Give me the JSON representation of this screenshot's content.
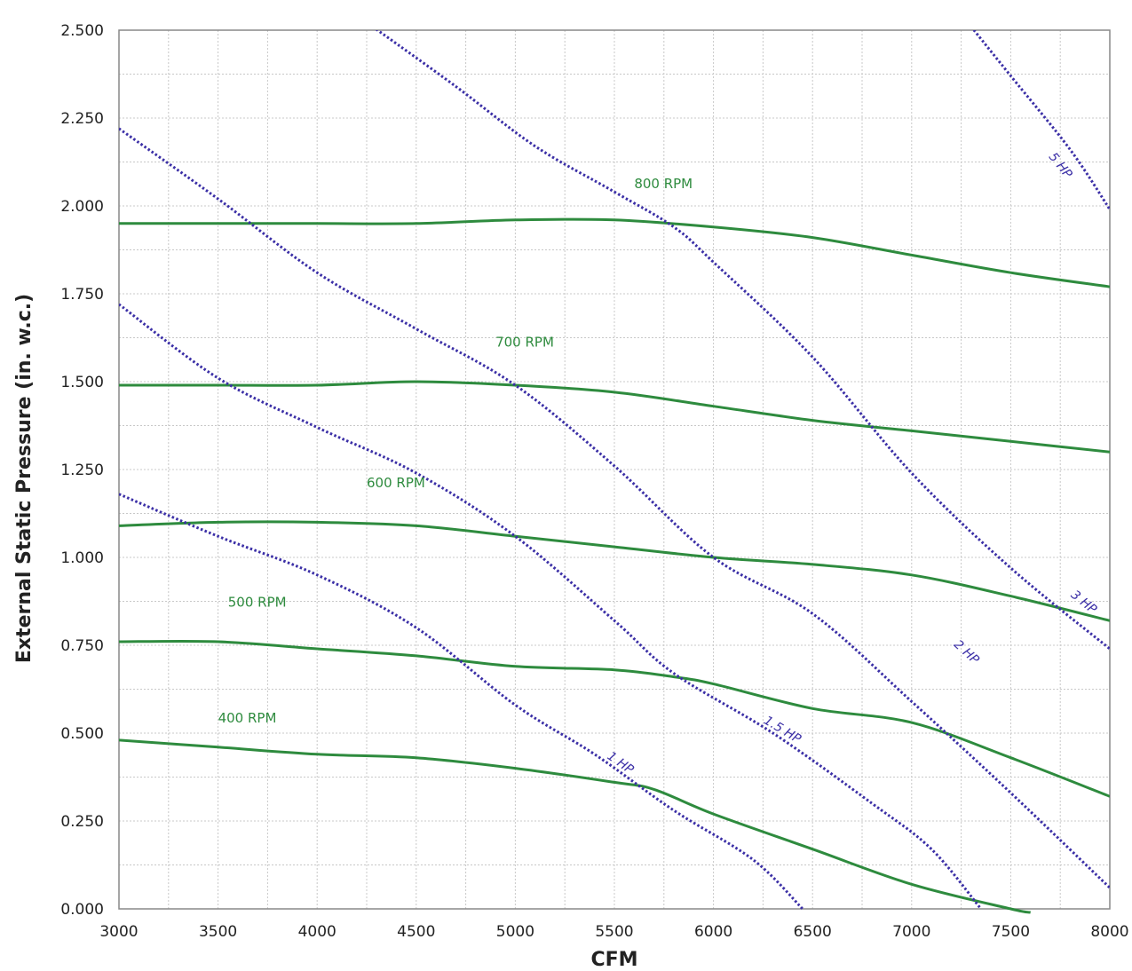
{
  "chart_data": {
    "type": "line",
    "xlabel": "CFM",
    "ylabel": "External Static Pressure (in. w.c.)",
    "xlim": [
      3000,
      8000
    ],
    "ylim": [
      0,
      2.5
    ],
    "x_ticks": [
      "3000",
      "3500",
      "4000",
      "4500",
      "5000",
      "5500",
      "6000",
      "6500",
      "7000",
      "7500",
      "8000"
    ],
    "y_ticks": [
      "0.000",
      "0.250",
      "0.500",
      "0.750",
      "1.000",
      "1.250",
      "1.500",
      "1.750",
      "2.000",
      "2.250",
      "2.500"
    ],
    "grid": true,
    "colors": {
      "rpm": "#2e8b3e",
      "hp": "#3b2fa6",
      "grid": "#c8c8c8",
      "frame": "#888888"
    },
    "series": [
      {
        "name": "400 RPM",
        "kind": "rpm",
        "label": "400 RPM",
        "label_at": [
          3500,
          0.53
        ],
        "points": [
          [
            3000,
            0.48
          ],
          [
            3500,
            0.46
          ],
          [
            4000,
            0.44
          ],
          [
            4500,
            0.43
          ],
          [
            5000,
            0.4
          ],
          [
            5500,
            0.36
          ],
          [
            5700,
            0.34
          ],
          [
            6000,
            0.27
          ],
          [
            6500,
            0.17
          ],
          [
            7000,
            0.07
          ],
          [
            7500,
            0.0
          ],
          [
            7600,
            -0.01
          ]
        ]
      },
      {
        "name": "500 RPM",
        "kind": "rpm",
        "label": "500 RPM",
        "label_at": [
          3550,
          0.86
        ],
        "points": [
          [
            3000,
            0.76
          ],
          [
            3500,
            0.76
          ],
          [
            4000,
            0.74
          ],
          [
            4500,
            0.72
          ],
          [
            5000,
            0.69
          ],
          [
            5500,
            0.68
          ],
          [
            5800,
            0.66
          ],
          [
            6000,
            0.64
          ],
          [
            6500,
            0.57
          ],
          [
            7000,
            0.53
          ],
          [
            7500,
            0.43
          ],
          [
            8000,
            0.32
          ]
        ]
      },
      {
        "name": "600 RPM",
        "kind": "rpm",
        "label": "600 RPM",
        "label_at": [
          4250,
          1.2
        ],
        "points": [
          [
            3000,
            1.09
          ],
          [
            3500,
            1.1
          ],
          [
            4000,
            1.1
          ],
          [
            4500,
            1.09
          ],
          [
            5000,
            1.06
          ],
          [
            5500,
            1.03
          ],
          [
            6000,
            1.0
          ],
          [
            6500,
            0.98
          ],
          [
            7000,
            0.95
          ],
          [
            7500,
            0.89
          ],
          [
            8000,
            0.82
          ]
        ]
      },
      {
        "name": "700 RPM",
        "kind": "rpm",
        "label": "700 RPM",
        "label_at": [
          4900,
          1.6
        ],
        "points": [
          [
            3000,
            1.49
          ],
          [
            3500,
            1.49
          ],
          [
            4000,
            1.49
          ],
          [
            4500,
            1.5
          ],
          [
            5000,
            1.49
          ],
          [
            5500,
            1.47
          ],
          [
            6000,
            1.43
          ],
          [
            6500,
            1.39
          ],
          [
            7000,
            1.36
          ],
          [
            7500,
            1.33
          ],
          [
            8000,
            1.3
          ]
        ]
      },
      {
        "name": "800 RPM",
        "kind": "rpm",
        "label": "800 RPM",
        "label_at": [
          5600,
          2.05
        ],
        "points": [
          [
            3000,
            1.95
          ],
          [
            3500,
            1.95
          ],
          [
            4000,
            1.95
          ],
          [
            4500,
            1.95
          ],
          [
            5000,
            1.96
          ],
          [
            5500,
            1.96
          ],
          [
            6000,
            1.94
          ],
          [
            6500,
            1.91
          ],
          [
            7000,
            1.86
          ],
          [
            7500,
            1.81
          ],
          [
            8000,
            1.77
          ]
        ]
      },
      {
        "name": "1 HP",
        "kind": "hp",
        "label": "1 HP",
        "label_at": [
          5460,
          0.43
        ],
        "points": [
          [
            3000,
            1.18
          ],
          [
            3500,
            1.06
          ],
          [
            4000,
            0.95
          ],
          [
            4500,
            0.8
          ],
          [
            5000,
            0.58
          ],
          [
            5400,
            0.44
          ],
          [
            5800,
            0.28
          ],
          [
            6200,
            0.14
          ],
          [
            6450,
            0.0
          ]
        ]
      },
      {
        "name": "1.5 HP",
        "kind": "hp",
        "label": "1.5 HP",
        "label_at": [
          6250,
          0.53
        ],
        "points": [
          [
            3000,
            1.72
          ],
          [
            3500,
            1.51
          ],
          [
            4000,
            1.37
          ],
          [
            4500,
            1.24
          ],
          [
            5000,
            1.06
          ],
          [
            5500,
            0.82
          ],
          [
            5800,
            0.67
          ],
          [
            6300,
            0.5
          ],
          [
            6800,
            0.3
          ],
          [
            7100,
            0.17
          ],
          [
            7350,
            0.0
          ]
        ]
      },
      {
        "name": "2 HP",
        "kind": "hp",
        "label": "2 HP",
        "label_at": [
          7210,
          0.75
        ],
        "points": [
          [
            3000,
            2.22
          ],
          [
            3500,
            2.02
          ],
          [
            4000,
            1.81
          ],
          [
            4500,
            1.65
          ],
          [
            5000,
            1.49
          ],
          [
            5500,
            1.26
          ],
          [
            6000,
            1.0
          ],
          [
            6500,
            0.84
          ],
          [
            7000,
            0.59
          ],
          [
            7500,
            0.33
          ],
          [
            8000,
            0.06
          ]
        ]
      },
      {
        "name": "3 HP",
        "kind": "hp",
        "label": "3 HP",
        "label_at": [
          7800,
          0.89
        ],
        "points": [
          [
            4280,
            2.51
          ],
          [
            4700,
            2.34
          ],
          [
            5100,
            2.17
          ],
          [
            5500,
            2.04
          ],
          [
            5800,
            1.94
          ],
          [
            6000,
            1.84
          ],
          [
            6500,
            1.57
          ],
          [
            7000,
            1.24
          ],
          [
            7500,
            0.97
          ],
          [
            8000,
            0.74
          ]
        ]
      },
      {
        "name": "5 HP",
        "kind": "hp",
        "label": "5 HP",
        "label_at": [
          7690,
          2.14
        ],
        "points": [
          [
            7300,
            2.51
          ],
          [
            7500,
            2.37
          ],
          [
            7800,
            2.16
          ],
          [
            8000,
            1.99
          ]
        ]
      }
    ]
  }
}
